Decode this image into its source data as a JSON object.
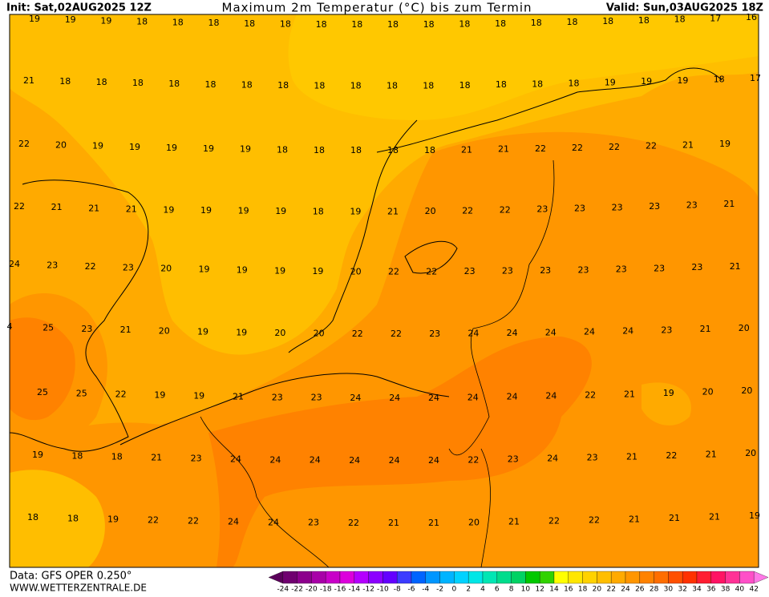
{
  "header": {
    "init": "Init: Sat,02AUG2025 12Z",
    "title": "Maximum 2m Temperatur (°C) bis zum Termin",
    "valid": "Valid: Sun,03AUG2025 18Z"
  },
  "footer": {
    "data": "Data: GFS OPER 0.250°",
    "site": "WWW.WETTERZENTRALE.DE"
  },
  "grid": [
    [
      19,
      19,
      19,
      18,
      18,
      18,
      18,
      18,
      18,
      18,
      18,
      18,
      18,
      18,
      18,
      18,
      18,
      18,
      18,
      17,
      16
    ],
    [
      21,
      18,
      18,
      18,
      18,
      18,
      18,
      18,
      18,
      18,
      18,
      18,
      18,
      18,
      18,
      18,
      19,
      19,
      19,
      18,
      17
    ],
    [
      22,
      20,
      19,
      19,
      19,
      19,
      19,
      18,
      18,
      18,
      18,
      18,
      21,
      21,
      22,
      22,
      22,
      22,
      21,
      19
    ],
    [
      22,
      21,
      21,
      21,
      19,
      19,
      19,
      19,
      18,
      19,
      21,
      20,
      22,
      22,
      23,
      23,
      23,
      23,
      23,
      21
    ],
    [
      24,
      23,
      22,
      23,
      20,
      19,
      19,
      19,
      19,
      20,
      22,
      22,
      23,
      23,
      23,
      23,
      23,
      23,
      23,
      21
    ],
    [
      4,
      25,
      23,
      21,
      20,
      19,
      19,
      20,
      20,
      22,
      22,
      23,
      24,
      24,
      24,
      24,
      24,
      23,
      21,
      20
    ],
    [
      25,
      25,
      22,
      19,
      19,
      21,
      23,
      23,
      24,
      24,
      24,
      24,
      24,
      24,
      22,
      21,
      19,
      20,
      20
    ],
    [
      19,
      18,
      18,
      21,
      23,
      24,
      24,
      24,
      24,
      24,
      24,
      22,
      23,
      24,
      23,
      21,
      22,
      21,
      20
    ],
    [
      18,
      18,
      19,
      22,
      22,
      24,
      24,
      23,
      22,
      21,
      21,
      20,
      21,
      22,
      22,
      21,
      21,
      21,
      19
    ]
  ],
  "colorbar": {
    "labels": [
      -24,
      -22,
      -20,
      -18,
      -16,
      -14,
      -12,
      -10,
      -8,
      -6,
      -4,
      -2,
      0,
      2,
      4,
      6,
      8,
      10,
      12,
      14,
      16,
      18,
      20,
      22,
      24,
      26,
      28,
      30,
      32,
      34,
      36,
      38,
      40,
      42
    ],
    "colors": [
      "#5a005a",
      "#700070",
      "#8c008c",
      "#a800a8",
      "#c800c8",
      "#dc00dc",
      "#b400ff",
      "#8c00ff",
      "#6400ff",
      "#3c3cff",
      "#0064ff",
      "#0096ff",
      "#00b4ff",
      "#00d2ff",
      "#00e6e6",
      "#00e6b4",
      "#00dc8c",
      "#00d264",
      "#00c800",
      "#32d200",
      "#ffff00",
      "#ffe600",
      "#ffd200",
      "#ffbe00",
      "#ffaa00",
      "#ff9600",
      "#ff8200",
      "#ff6e00",
      "#ff5000",
      "#ff3200",
      "#ff1e32",
      "#ff1464",
      "#ff3296",
      "#ff50c8",
      "#ff78e6"
    ]
  }
}
